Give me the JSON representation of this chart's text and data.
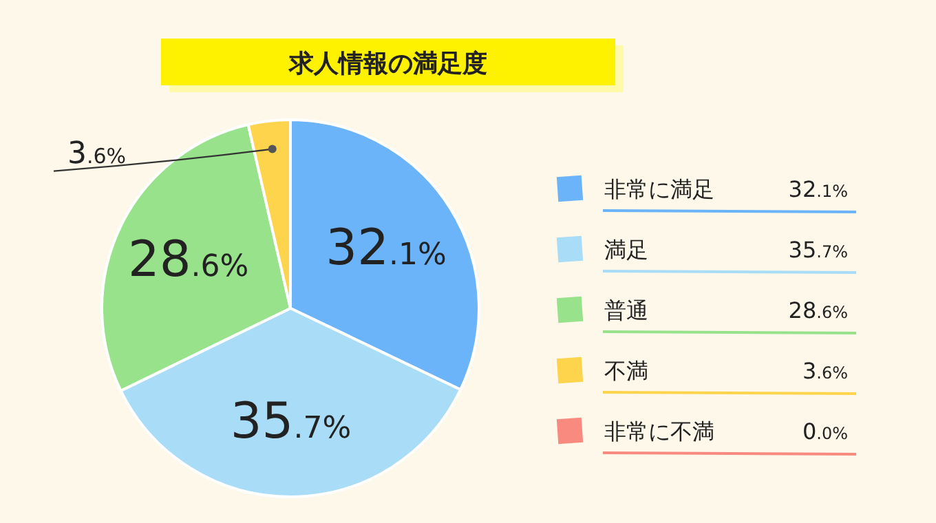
{
  "chart_data": {
    "type": "pie",
    "title": "求人情報の満足度",
    "categories": [
      "非常に満足",
      "満足",
      "普通",
      "不満",
      "非常に不満"
    ],
    "values": [
      32.1,
      35.7,
      28.6,
      3.6,
      0.0
    ],
    "colors": [
      "#6cb4fa",
      "#a9dcf6",
      "#98e28c",
      "#fdd44c",
      "#f88a80"
    ],
    "value_labels": [
      "32.1%",
      "35.7%",
      "28.6%",
      "3.6%",
      "0.0%"
    ],
    "legend": "right"
  }
}
